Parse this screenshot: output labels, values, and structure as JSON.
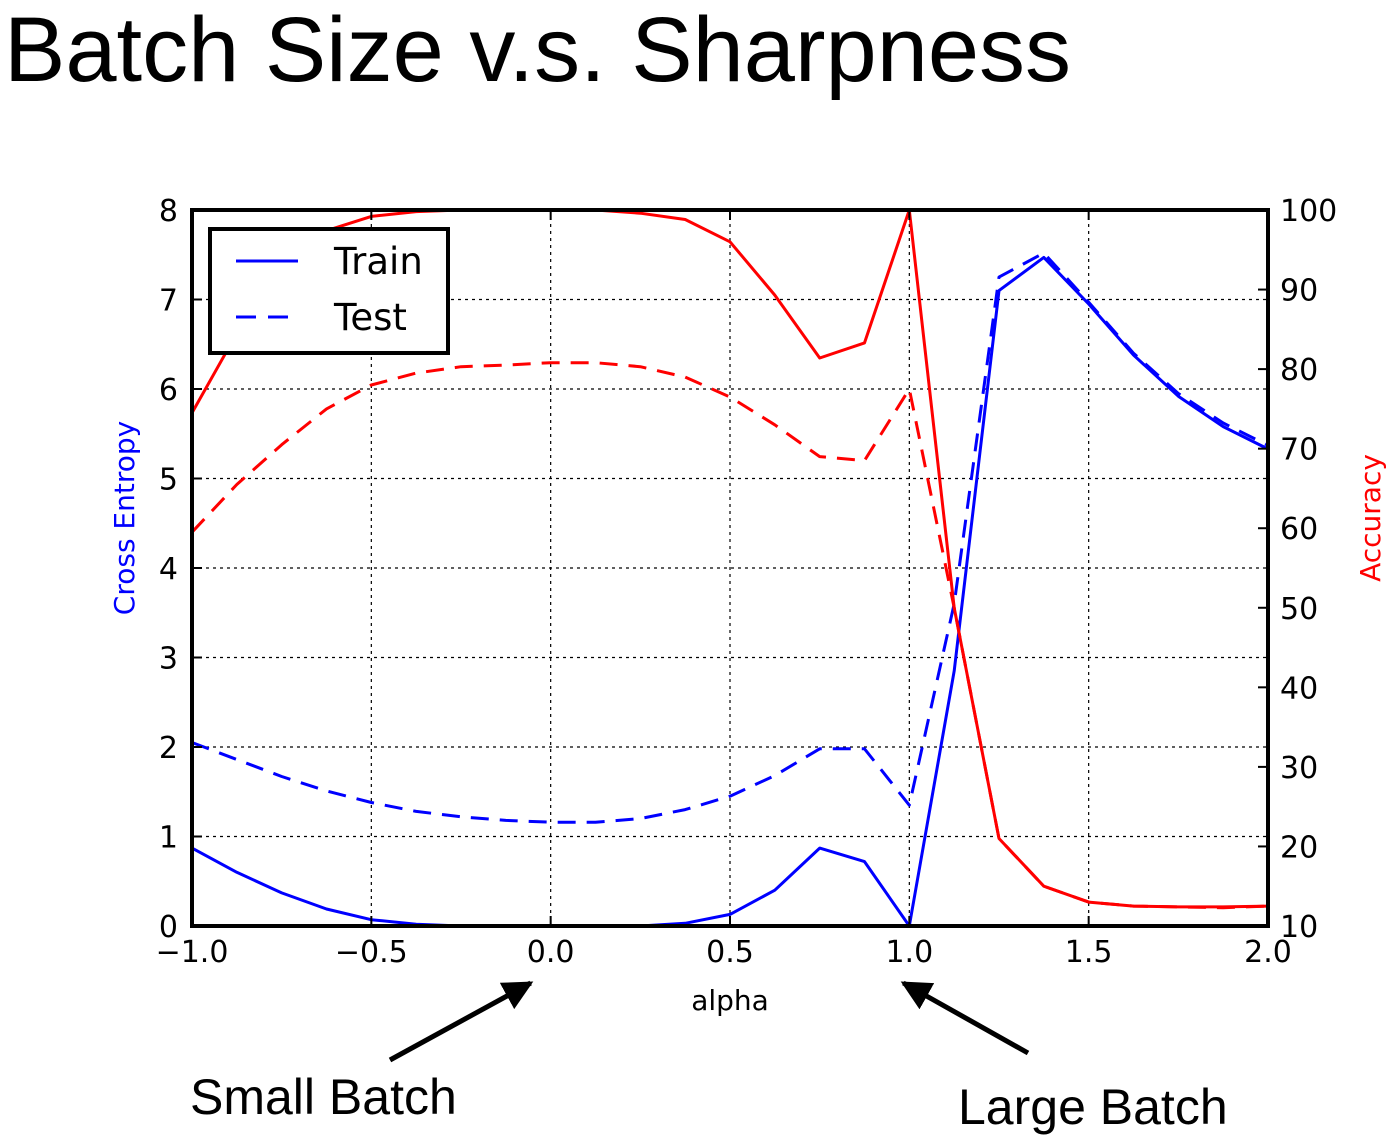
{
  "title": "Batch Size v.s. Sharpness",
  "chart_data": {
    "type": "line",
    "xlabel": "alpha",
    "ylabel_left": "Cross Entropy",
    "ylabel_right": "Accuracy",
    "xlim": [
      -1.0,
      2.0
    ],
    "ylim_left": [
      0,
      8
    ],
    "ylim_right": [
      10,
      100
    ],
    "x_ticks": [
      "−1.0",
      "−0.5",
      "0.0",
      "0.5",
      "1.0",
      "1.5",
      "2.0"
    ],
    "x_tick_values": [
      -1.0,
      -0.5,
      0.0,
      0.5,
      1.0,
      1.5,
      2.0
    ],
    "yleft_ticks": [
      "0",
      "1",
      "2",
      "3",
      "4",
      "5",
      "6",
      "7",
      "8"
    ],
    "yleft_tick_values": [
      0,
      1,
      2,
      3,
      4,
      5,
      6,
      7,
      8
    ],
    "yright_ticks": [
      "10",
      "20",
      "30",
      "40",
      "50",
      "60",
      "70",
      "80",
      "90",
      "100"
    ],
    "yright_tick_values": [
      10,
      20,
      30,
      40,
      50,
      60,
      70,
      80,
      90,
      100
    ],
    "grid": true,
    "legend": {
      "position": "top-left",
      "entries": [
        {
          "label": "Train",
          "style": "solid"
        },
        {
          "label": "Test",
          "style": "dashed"
        }
      ]
    },
    "colors": {
      "cross_entropy": "#0000ff",
      "accuracy": "#ff0000"
    },
    "series": [
      {
        "name": "Train",
        "metric": "cross_entropy",
        "axis": "left",
        "style": "solid",
        "x": [
          -1.0,
          -0.875,
          -0.75,
          -0.625,
          -0.5,
          -0.375,
          -0.25,
          -0.125,
          0.0,
          0.125,
          0.25,
          0.375,
          0.5,
          0.625,
          0.75,
          0.875,
          1.0,
          1.125,
          1.25,
          1.375,
          1.5,
          1.625,
          1.75,
          1.875,
          2.0
        ],
        "y": [
          0.87,
          0.6,
          0.37,
          0.19,
          0.07,
          0.02,
          0.0,
          0.0,
          0.0,
          0.0,
          0.0,
          0.03,
          0.13,
          0.4,
          0.87,
          0.72,
          0.0,
          2.85,
          7.1,
          7.47,
          6.95,
          6.38,
          5.92,
          5.58,
          5.33
        ]
      },
      {
        "name": "Test",
        "metric": "cross_entropy",
        "axis": "left",
        "style": "dashed",
        "x": [
          -1.0,
          -0.875,
          -0.75,
          -0.625,
          -0.5,
          -0.375,
          -0.25,
          -0.125,
          0.0,
          0.125,
          0.25,
          0.375,
          0.5,
          0.625,
          0.75,
          0.875,
          1.0,
          1.125,
          1.25,
          1.375,
          1.5,
          1.625,
          1.75,
          1.875,
          2.0
        ],
        "y": [
          2.05,
          1.86,
          1.67,
          1.51,
          1.38,
          1.28,
          1.22,
          1.18,
          1.16,
          1.16,
          1.2,
          1.3,
          1.45,
          1.68,
          1.98,
          1.98,
          1.35,
          3.6,
          7.25,
          7.52,
          6.97,
          6.4,
          5.95,
          5.62,
          5.37
        ]
      },
      {
        "name": "Train",
        "metric": "accuracy",
        "axis": "right",
        "style": "solid",
        "x": [
          -1.0,
          -0.875,
          -0.75,
          -0.625,
          -0.5,
          -0.375,
          -0.25,
          -0.125,
          0.0,
          0.125,
          0.25,
          0.375,
          0.5,
          0.625,
          0.75,
          0.875,
          1.0,
          1.125,
          1.25,
          1.375,
          1.5,
          1.625,
          1.75,
          1.875,
          2.0
        ],
        "y": [
          74.5,
          84.5,
          92.3,
          97.4,
          99.2,
          99.8,
          100,
          100,
          100,
          100,
          99.6,
          98.8,
          96.0,
          89.3,
          81.4,
          83.3,
          100,
          50.0,
          21.0,
          15.0,
          13.0,
          12.5,
          12.4,
          12.4,
          12.5
        ]
      },
      {
        "name": "Test",
        "metric": "accuracy",
        "axis": "right",
        "style": "dashed",
        "x": [
          -1.0,
          -0.875,
          -0.75,
          -0.625,
          -0.5,
          -0.375,
          -0.25,
          -0.125,
          0.0,
          0.125,
          0.25,
          0.375,
          0.5,
          0.625,
          0.75,
          0.875,
          1.0,
          1.125,
          1.25,
          1.375,
          1.5,
          1.625,
          1.75,
          1.875,
          2.0
        ],
        "y": [
          59.5,
          65.5,
          70.5,
          75.0,
          78.0,
          79.5,
          80.3,
          80.5,
          80.8,
          80.8,
          80.3,
          79.0,
          76.5,
          73.0,
          69.0,
          68.5,
          77.5,
          50.0,
          21.0,
          15.0,
          13.0,
          12.5,
          12.4,
          12.3,
          12.5
        ]
      }
    ],
    "annotations": [
      {
        "text": "Small Batch",
        "points_to_x": 0.0
      },
      {
        "text": "Large Batch",
        "points_to_x": 1.0
      }
    ]
  }
}
